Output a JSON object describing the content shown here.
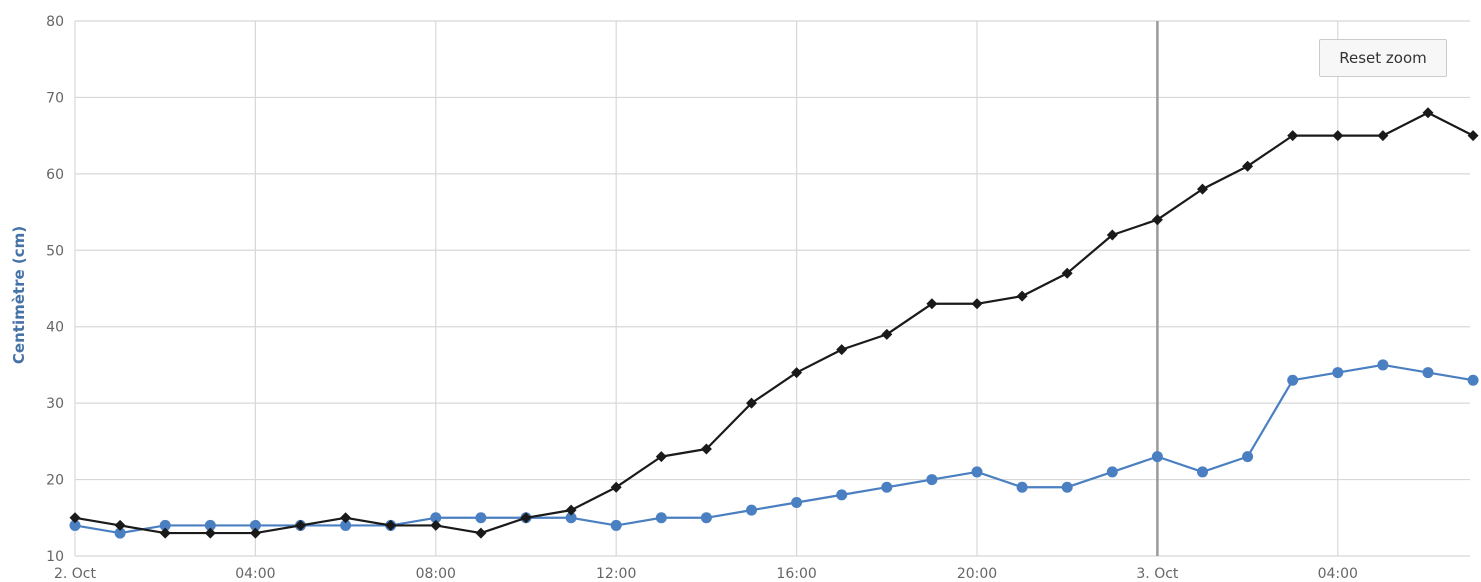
{
  "chart_data": {
    "type": "line",
    "ylabel": "Centimètre (cm)",
    "ylim": [
      10,
      80
    ],
    "y_ticks": [
      10,
      20,
      30,
      40,
      50,
      60,
      70,
      80
    ],
    "x_unit": "hour",
    "x_range": [
      "2. Oct 00:00",
      "3. Oct 07:00"
    ],
    "x_ticks": [
      {
        "label": "2. Oct",
        "hour": 0
      },
      {
        "label": "04:00",
        "hour": 4
      },
      {
        "label": "08:00",
        "hour": 8
      },
      {
        "label": "12:00",
        "hour": 12
      },
      {
        "label": "16:00",
        "hour": 16
      },
      {
        "label": "20:00",
        "hour": 20
      },
      {
        "label": "3. Oct",
        "hour": 24
      },
      {
        "label": "04:00",
        "hour": 28
      }
    ],
    "grid": true,
    "series": [
      {
        "color": "#1a1a1a",
        "marker": "diamond",
        "x": [
          0,
          1,
          2,
          3,
          4,
          5,
          6,
          7,
          8,
          9,
          10,
          11,
          12,
          13,
          14,
          15,
          16,
          17,
          18,
          19,
          20,
          21,
          22,
          23,
          24,
          25,
          26,
          27,
          28,
          29,
          30,
          31
        ],
        "values": [
          15,
          14,
          13,
          13,
          13,
          14,
          15,
          14,
          14,
          13,
          15,
          16,
          19,
          23,
          24,
          30,
          34,
          37,
          39,
          43,
          43,
          44,
          47,
          52,
          54,
          58,
          61,
          65,
          65,
          65,
          68,
          65
        ]
      },
      {
        "color": "#4a7fc1",
        "marker": "circle",
        "x": [
          0,
          1,
          2,
          3,
          4,
          5,
          6,
          7,
          8,
          9,
          10,
          11,
          12,
          13,
          14,
          15,
          16,
          17,
          18,
          19,
          20,
          21,
          22,
          23,
          24,
          25,
          26,
          27,
          28,
          29,
          30,
          31
        ],
        "values": [
          14,
          13,
          14,
          14,
          14,
          14,
          14,
          14,
          15,
          15,
          15,
          15,
          14,
          15,
          15,
          16,
          17,
          18,
          19,
          20,
          21,
          19,
          19,
          21,
          23,
          21,
          23,
          33,
          34,
          35,
          34,
          33
        ]
      }
    ]
  },
  "controls": {
    "reset_zoom_label": "Reset zoom"
  }
}
